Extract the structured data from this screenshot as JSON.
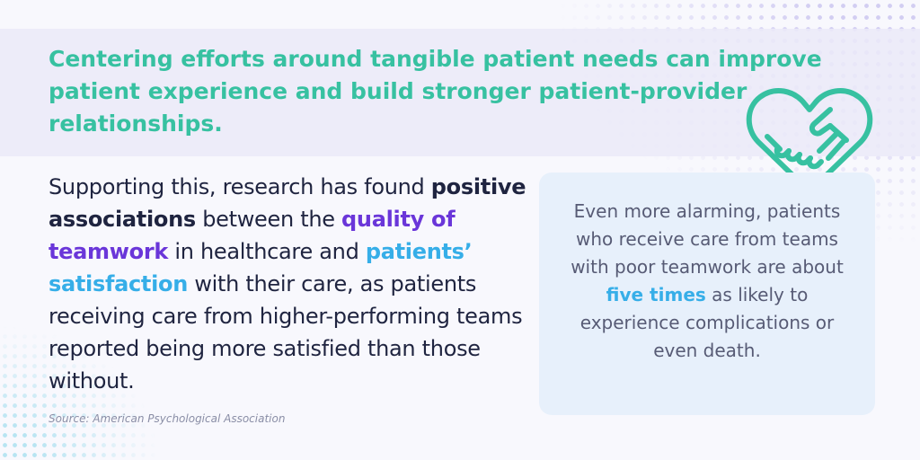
{
  "headline": "Centering efforts around tangible patient needs can improve patient experience and build stronger patient-provider relationships.",
  "body": {
    "intro": "Supporting this, research has found ",
    "highlight_associations": "positive associations",
    "between": " between the ",
    "highlight_teamwork": "quality of teamwork",
    "in_healthcare": " in healthcare and ",
    "highlight_satisfaction": "patients’ satisfaction",
    "rest": " with their care, as patients receiving care from higher-performing teams reported being more satisfied than those without."
  },
  "card": {
    "text_before": "Even more alarming, patients who receive care from teams with poor teamwork are about ",
    "highlight": "five times",
    "text_after": " as likely to experience complications or even death."
  },
  "source": "Source: American Psychological Association",
  "icons": {
    "heart": "heart-handshake-icon"
  },
  "colors": {
    "headline": "#37c1a1",
    "body_text": "#1f2440",
    "purple_highlight": "#6a36d9",
    "blue_highlight": "#36aee8",
    "card_background": "#e7f0fb",
    "card_text": "#575b75",
    "icon": "#37c1a1"
  }
}
